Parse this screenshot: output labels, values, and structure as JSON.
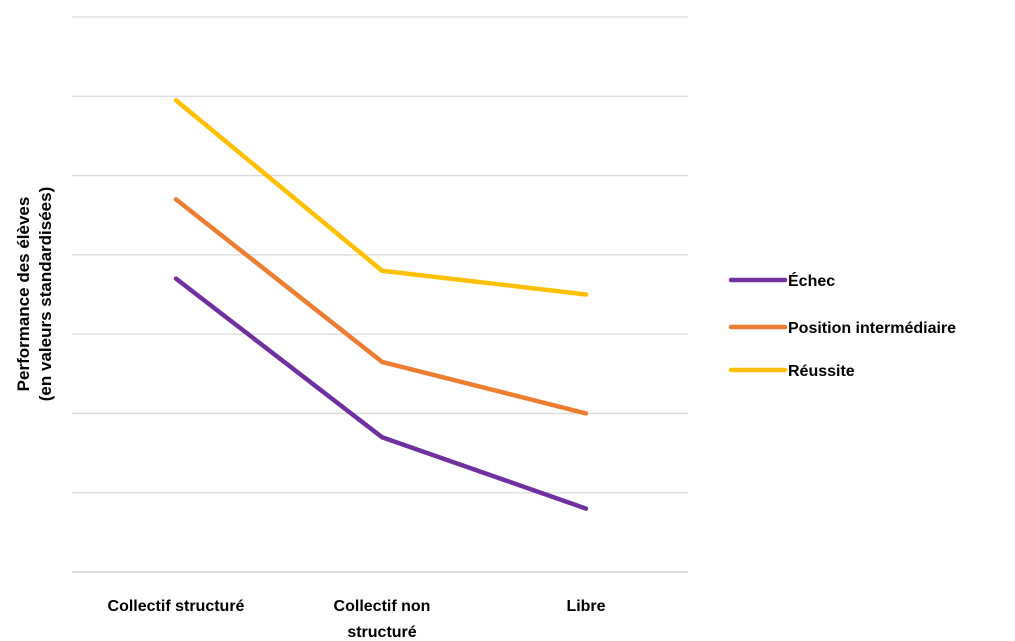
{
  "chart_data": {
    "type": "line",
    "categories": [
      "Collectif structuré",
      "Collectif non structuré",
      "Libre"
    ],
    "category_lines": [
      [
        "Collectif structuré"
      ],
      [
        "Collectif non",
        "structuré"
      ],
      [
        "Libre"
      ]
    ],
    "ylabel_lines": [
      "Performance des élèves",
      "(en valeurs standardisées)"
    ],
    "ylim": [
      0,
      7
    ],
    "grid": true,
    "legend": "right",
    "series": [
      {
        "name": "Échec",
        "color": "#7030A0",
        "values": [
          3.7,
          1.7,
          0.8
        ]
      },
      {
        "name": "Position intermédiaire",
        "color": "#ED7D31",
        "values": [
          4.7,
          2.65,
          2.0
        ]
      },
      {
        "name": "Réussite",
        "color": "#FFC000",
        "values": [
          5.95,
          3.8,
          3.5
        ]
      }
    ]
  }
}
